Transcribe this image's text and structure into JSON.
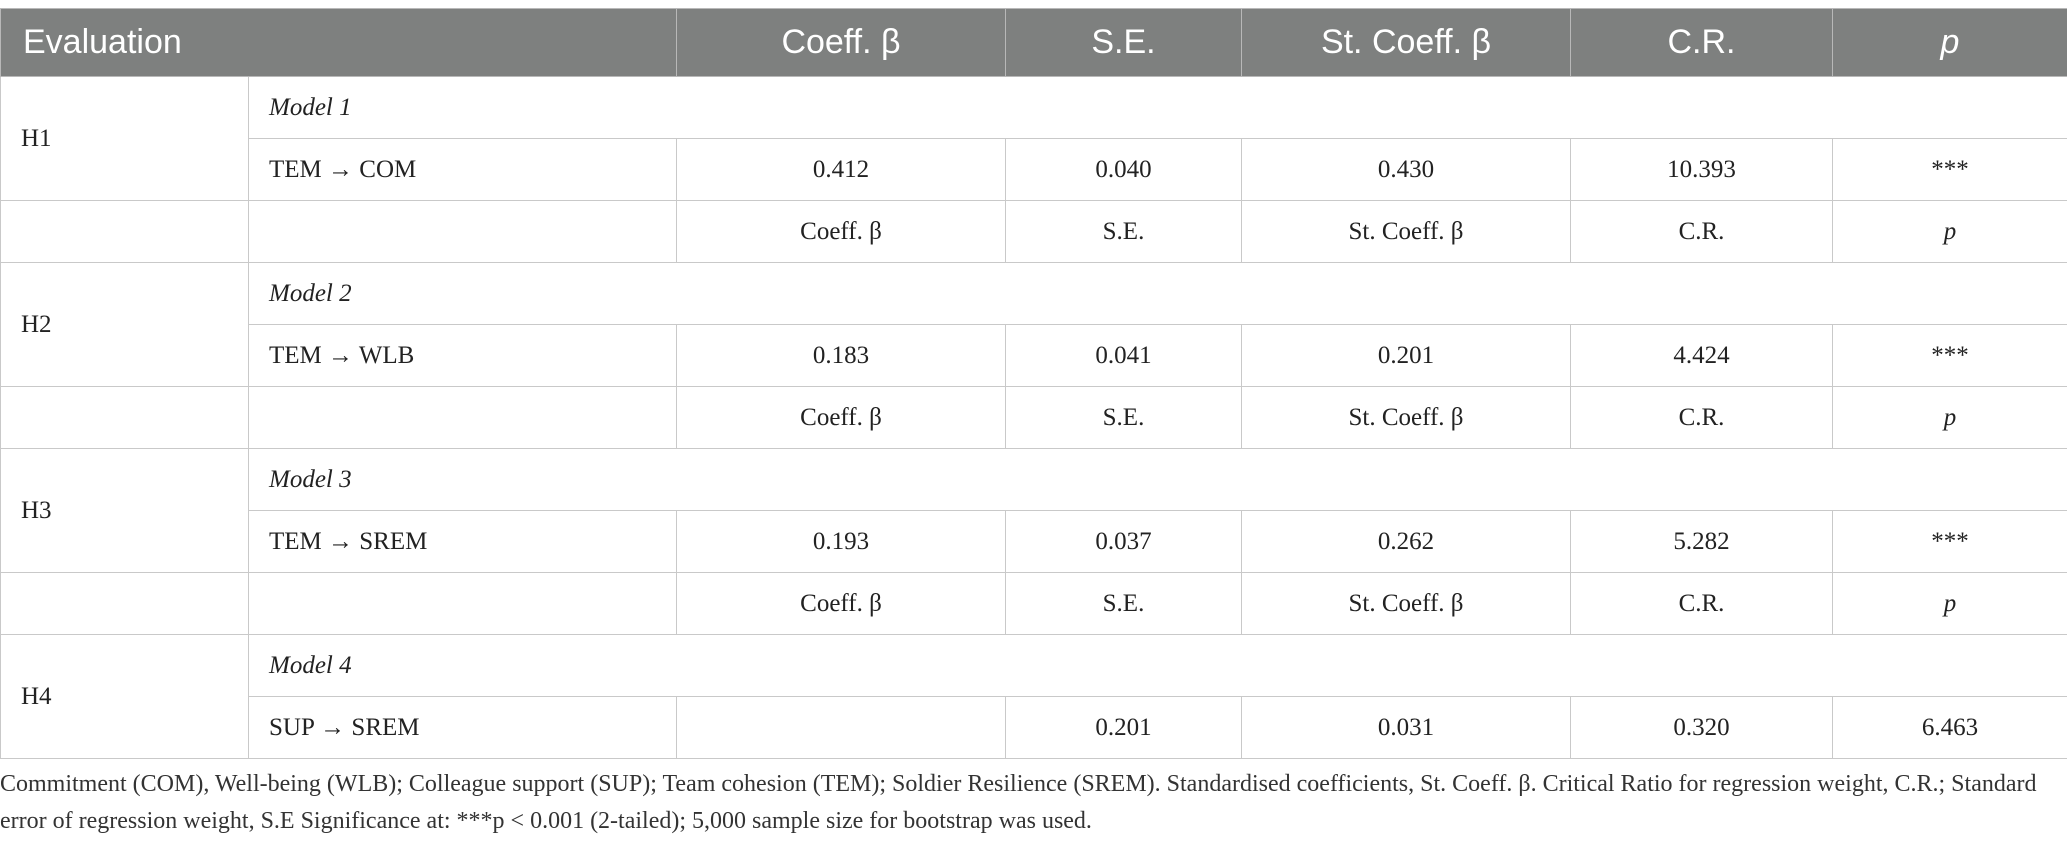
{
  "header": {
    "evaluation": "Evaluation",
    "coeff": "Coeff. β",
    "se": "S.E.",
    "st_coeff": "St. Coeff. β",
    "cr": "C.R.",
    "p": "p"
  },
  "subheader": {
    "coeff": "Coeff. β",
    "se": "S.E.",
    "st_coeff": "St. Coeff. β",
    "cr": "C.R.",
    "p": "p"
  },
  "hypotheses": [
    {
      "id": "H1",
      "model": "Model 1",
      "path": "TEM → COM",
      "coeff": "0.412",
      "se": "0.040",
      "st_coeff": "0.430",
      "cr": "10.393",
      "p": "***"
    },
    {
      "id": "H2",
      "model": "Model 2",
      "path": "TEM → WLB",
      "coeff": "0.183",
      "se": "0.041",
      "st_coeff": "0.201",
      "cr": "4.424",
      "p": "***"
    },
    {
      "id": "H3",
      "model": "Model 3",
      "path": "TEM → SREM",
      "coeff": "0.193",
      "se": "0.037",
      "st_coeff": "0.262",
      "cr": "5.282",
      "p": "***"
    },
    {
      "id": "H4",
      "model": "Model 4",
      "path": "SUP → SREM",
      "coeff": "",
      "se": "0.201",
      "st_coeff": "0.031",
      "cr": "0.320",
      "p": "6.463"
    }
  ],
  "footnote": "Commitment (COM), Well-being (WLB); Colleague support (SUP); Team cohesion (TEM); Soldier Resilience (SREM). Standardised coefficients, St. Coeff. β. Critical Ratio for regression weight, C.R.; Standard error of regression weight, S.E Significance at: ***p < 0.001 (2-tailed); 5,000 sample size for bootstrap was used."
}
